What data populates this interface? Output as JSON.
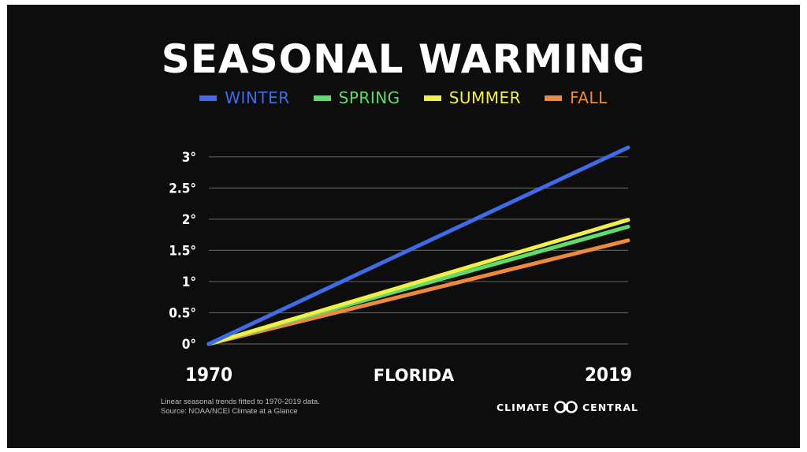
{
  "colors": {
    "background": "#0d0d0d",
    "winter": "#3f6be6",
    "spring": "#5fdc6a",
    "summer": "#f2ef4a",
    "fall": "#ef8a3a",
    "grid": "#5a5a5a"
  },
  "brand": {
    "left_text": "CLIMATE",
    "right_text": "CENTRAL",
    "icon": "climate-central-logo-icon"
  },
  "footnote": {
    "line1": "Linear seasonal trends fitted to 1970-2019 data.",
    "line2": "Source: NOAA/NCEI Climate at a Glance"
  },
  "chart_data": {
    "type": "line",
    "title": "SEASONAL WARMING",
    "region_label": "FLORIDA",
    "legend_placement": "top-center",
    "grid": true,
    "x": [
      1970,
      2019
    ],
    "xlim": [
      1970,
      2019
    ],
    "x_tick_labels": [
      "1970",
      "2019"
    ],
    "ylim": [
      0,
      3.2
    ],
    "y_ticks": [
      0,
      0.5,
      1,
      1.5,
      2,
      2.5,
      3
    ],
    "y_tick_labels": [
      "0°",
      "0.5°",
      "1°",
      "1.5°",
      "2°",
      "2.5°",
      "3°"
    ],
    "series": [
      {
        "name": "WINTER",
        "values": [
          0,
          3.15
        ],
        "color": "#3f6be6"
      },
      {
        "name": "SPRING",
        "values": [
          0,
          1.88
        ],
        "color": "#5fdc6a"
      },
      {
        "name": "SUMMER",
        "values": [
          0,
          1.99
        ],
        "color": "#f2ef4a"
      },
      {
        "name": "FALL",
        "values": [
          0,
          1.66
        ],
        "color": "#ef8a3a"
      }
    ]
  }
}
